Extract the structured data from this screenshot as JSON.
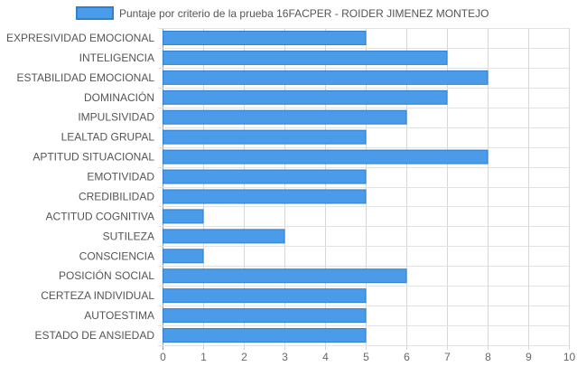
{
  "chart_data": {
    "type": "bar",
    "orientation": "horizontal",
    "categories": [
      "EXPRESIVIDAD EMOCIONAL",
      "INTELIGENCIA",
      "ESTABILIDAD EMOCIONAL",
      "DOMINACIÓN",
      "IMPULSIVIDAD",
      "LEALTAD GRUPAL",
      "APTITUD SITUACIONAL",
      "EMOTIVIDAD",
      "CREDIBILIDAD",
      "ACTITUD COGNITIVA",
      "SUTILEZA",
      "CONSCIENCIA",
      "POSICIÓN SOCIAL",
      "CERTEZA INDIVIDUAL",
      "AUTOESTIMA",
      "ESTADO DE ANSIEDAD"
    ],
    "series": [
      {
        "name": "Puntaje por criterio de la prueba 16FACPER - ROIDER JIMENEZ MONTEJO",
        "values": [
          5,
          7,
          8,
          7,
          6,
          5,
          8,
          5,
          5,
          1,
          3,
          1,
          6,
          5,
          5,
          5
        ],
        "color": "#4a9be8",
        "border_color": "#2e7fd6"
      }
    ],
    "x_ticks": [
      "0",
      "1",
      "2",
      "3",
      "4",
      "5",
      "6",
      "7",
      "8",
      "9",
      "10"
    ],
    "xlim": [
      0,
      10
    ],
    "grid": true,
    "legend_position": "top"
  }
}
